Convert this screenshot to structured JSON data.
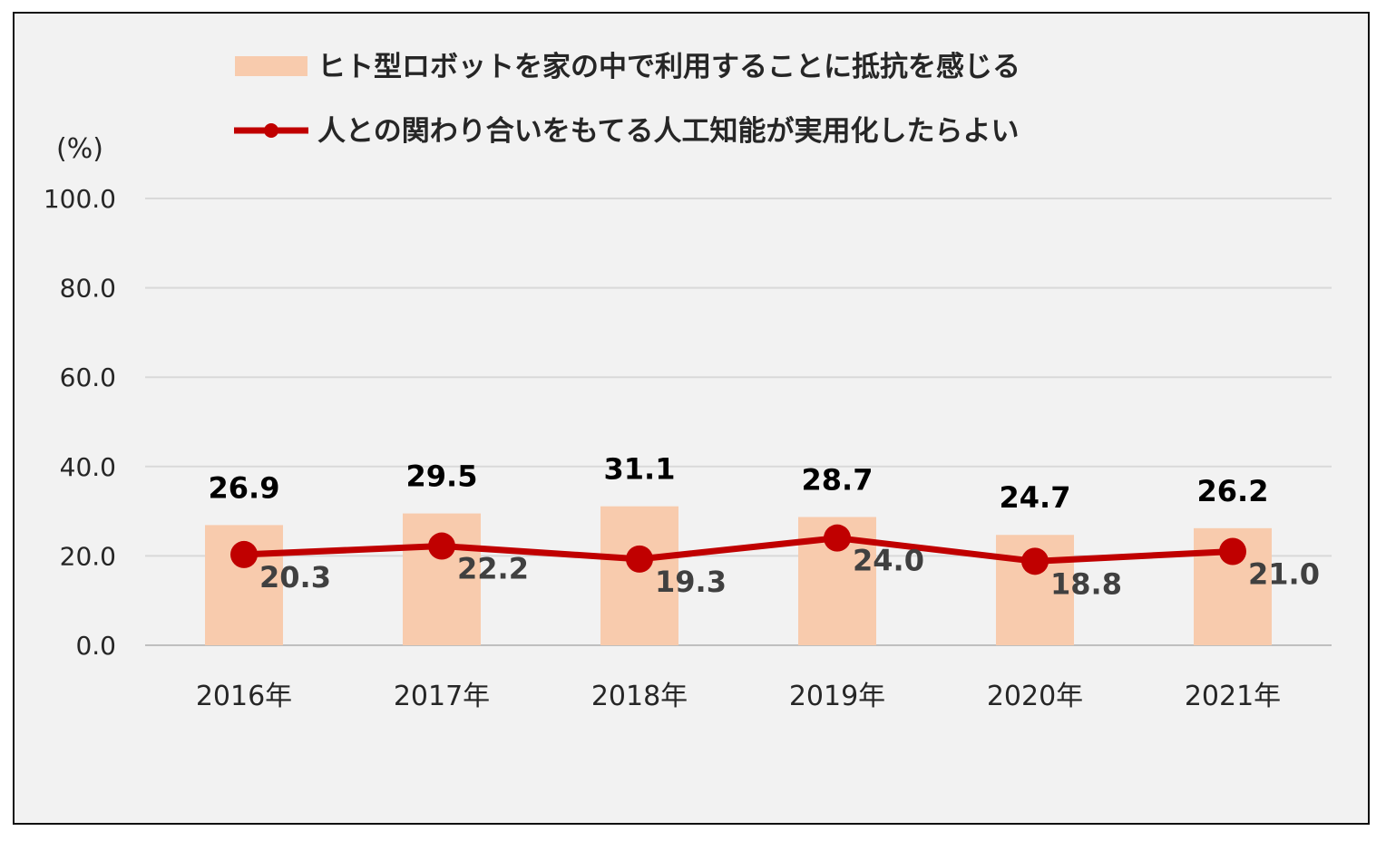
{
  "chart_data": {
    "type": "bar+line",
    "unit_label": "(%)",
    "categories": [
      "2016年",
      "2017年",
      "2018年",
      "2019年",
      "2020年",
      "2021年"
    ],
    "ylim": [
      0,
      100
    ],
    "yticks": [
      "0.0",
      "20.0",
      "40.0",
      "60.0",
      "80.0",
      "100.0"
    ],
    "grid": true,
    "legend_position": "top-center",
    "series": [
      {
        "name": "ヒト型ロボットを家の中で利用することに抵抗を感じる",
        "kind": "bar",
        "color": "#f8cbad",
        "values": [
          26.9,
          29.5,
          31.1,
          28.7,
          24.7,
          26.2
        ],
        "labels": [
          "26.9",
          "29.5",
          "31.1",
          "28.7",
          "24.7",
          "26.2"
        ]
      },
      {
        "name": "人との関わり合いをもてる人工知能が実用化したらよい",
        "kind": "line",
        "color": "#c00000",
        "values": [
          20.3,
          22.2,
          19.3,
          24.0,
          18.8,
          21.0
        ],
        "labels": [
          "20.3",
          "22.2",
          "19.3",
          "24.0",
          "18.8",
          "21.0"
        ]
      }
    ]
  }
}
